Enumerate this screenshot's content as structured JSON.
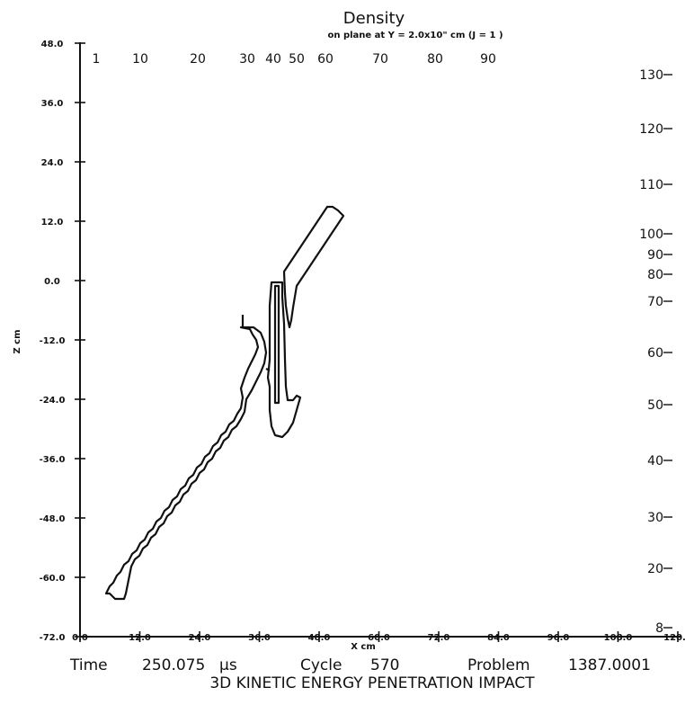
{
  "title": "Density",
  "subtitle": "on plane at Y =  2.0x10\"  cm (J =   1 )",
  "xlabel": "X cm",
  "ylabel": "Z cm",
  "x_ticks": [
    "0.0",
    "12.0",
    "24.0",
    "36.0",
    "48.0",
    "60.0",
    "72.0",
    "84.0",
    "96.0",
    "108.0",
    "120.0"
  ],
  "y_ticks": [
    "48.0",
    "36.0",
    "24.0",
    "12.0",
    "0.0",
    "-12.0",
    "-24.0",
    "-36.0",
    "-48.0",
    "-60.0",
    "-72.0"
  ],
  "top_scale_labels": [
    "1",
    "10",
    "20",
    "30",
    "40",
    "50",
    "60",
    "70",
    "80",
    "90"
  ],
  "right_scale_labels": [
    "130",
    "120",
    "110",
    "100",
    "90",
    "80",
    "70",
    "60",
    "50",
    "40",
    "30",
    "20",
    "8"
  ],
  "info": {
    "time_label": "Time",
    "time_value": "250.075",
    "time_unit": "µs",
    "cycle_label": "Cycle",
    "cycle_value": "570",
    "problem_label": "Problem",
    "problem_value": "1387.0001"
  },
  "caption": "3D KINETIC ENERGY PENETRATION IMPACT",
  "colors": {
    "line": "#111111",
    "background": "#ffffff"
  }
}
